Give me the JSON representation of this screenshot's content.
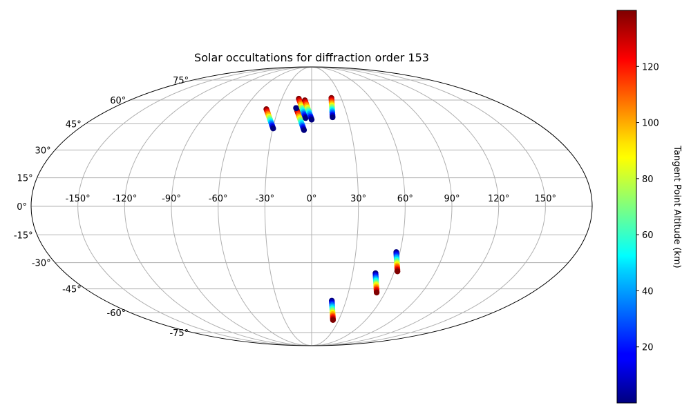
{
  "chart_data": {
    "type": "scatter",
    "projection": "mollweide",
    "title": "Solar occultations for diffraction order 153",
    "xlabel": "",
    "ylabel": "",
    "grid": true,
    "x_ticks": [
      "-150°",
      "-120°",
      "-90°",
      "-60°",
      "-30°",
      "0°",
      "30°",
      "60°",
      "90°",
      "120°",
      "150°"
    ],
    "y_ticks": [
      "75°",
      "60°",
      "45°",
      "30°",
      "15°",
      "0°",
      "-15°",
      "-30°",
      "-45°",
      "-60°",
      "-75°"
    ],
    "colorbar": {
      "label": "Tangent Point Altitude (km)",
      "ticks": [
        "20",
        "40",
        "60",
        "80",
        "100",
        "120"
      ],
      "range": [
        0,
        140
      ],
      "colormap": "jet"
    },
    "series": [
      {
        "lon": -34.5,
        "lat": 48,
        "alt_start": 140,
        "alt_end": 0
      },
      {
        "lon": -9,
        "lat": 47,
        "alt_start": 140,
        "alt_end": 0
      },
      {
        "lon": -14,
        "lat": 54.7,
        "alt_start": 0,
        "alt_end": 0
      },
      {
        "lon": -8.5,
        "lat": 54.5,
        "alt_start": 140,
        "alt_end": 0
      },
      {
        "lon": -3,
        "lat": 53.5,
        "alt_start": 140,
        "alt_end": 0
      },
      {
        "lon": 18.5,
        "lat": 55,
        "alt_start": 140,
        "alt_end": 0
      },
      {
        "lon": 59.6,
        "lat": -29.5,
        "alt_start": 0,
        "alt_end": 140
      },
      {
        "lon": 49.5,
        "lat": -41.5,
        "alt_start": 0,
        "alt_end": 140
      },
      {
        "lon": 20,
        "lat": -58.5,
        "alt_start": 0,
        "alt_end": 140
      }
    ]
  }
}
